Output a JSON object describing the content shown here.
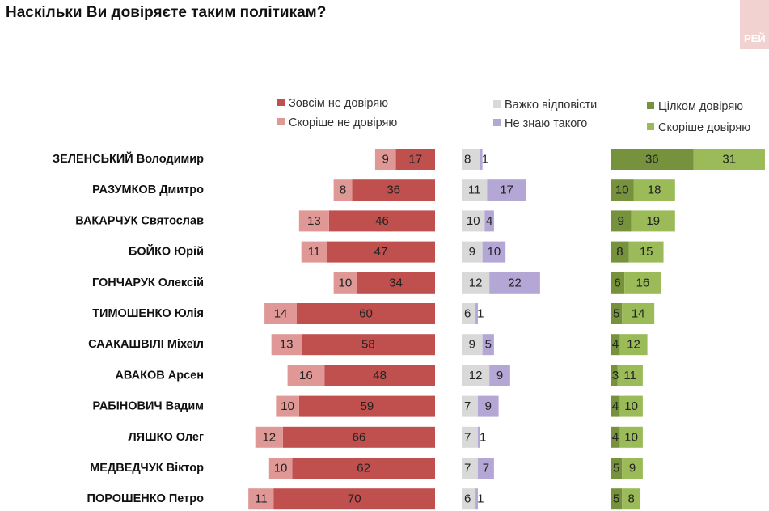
{
  "title": "Наскільки Ви довіряєте таким політикам?",
  "logo_text": "РЕЙ",
  "colors": {
    "distrust_full": "#c0504d",
    "distrust_rather": "#df9896",
    "hard_to_say": "#d9d9d9",
    "dont_know": "#b4a7d6",
    "trust_full": "#76923c",
    "trust_rather": "#9bbb59"
  },
  "chart_data": {
    "type": "bar",
    "title": "Наскільки Ви довіряєте таким політикам?",
    "categories": [
      "ЗЕЛЕНСЬКИЙ Володимир",
      "РАЗУМКОВ Дмитро",
      "ВАКАРЧУК Святослав",
      "БОЙКО Юрій",
      "ГОНЧАРУК Олексій",
      "ТИМОШЕНКО Юлія",
      "СААКАШВІЛІ Міхеїл",
      "АВАКОВ Арсен",
      "РАБІНОВИЧ Вадим",
      "ЛЯШКО Олег",
      "МЕДВЕДЧУК Віктор",
      "ПОРОШЕНКО Петро"
    ],
    "series": [
      {
        "name": "Зовсім не довіряю",
        "values": [
          17,
          36,
          46,
          47,
          34,
          60,
          58,
          48,
          59,
          66,
          62,
          70
        ]
      },
      {
        "name": "Скоріше не довіряю",
        "values": [
          9,
          8,
          13,
          11,
          10,
          14,
          13,
          16,
          10,
          12,
          10,
          11
        ]
      },
      {
        "name": "Важко відповісти",
        "values": [
          8,
          11,
          10,
          9,
          12,
          6,
          9,
          12,
          7,
          7,
          7,
          6
        ]
      },
      {
        "name": "Не знаю такого",
        "values": [
          1,
          17,
          4,
          10,
          22,
          1,
          5,
          9,
          9,
          1,
          7,
          1
        ]
      },
      {
        "name": "Цілком довіряю",
        "values": [
          36,
          10,
          9,
          8,
          6,
          5,
          4,
          3,
          4,
          4,
          5,
          5
        ]
      },
      {
        "name": "Скоріше довіряю",
        "values": [
          31,
          18,
          19,
          15,
          16,
          14,
          12,
          11,
          10,
          10,
          9,
          8
        ]
      }
    ],
    "legend_placement": "top",
    "grid": false
  }
}
